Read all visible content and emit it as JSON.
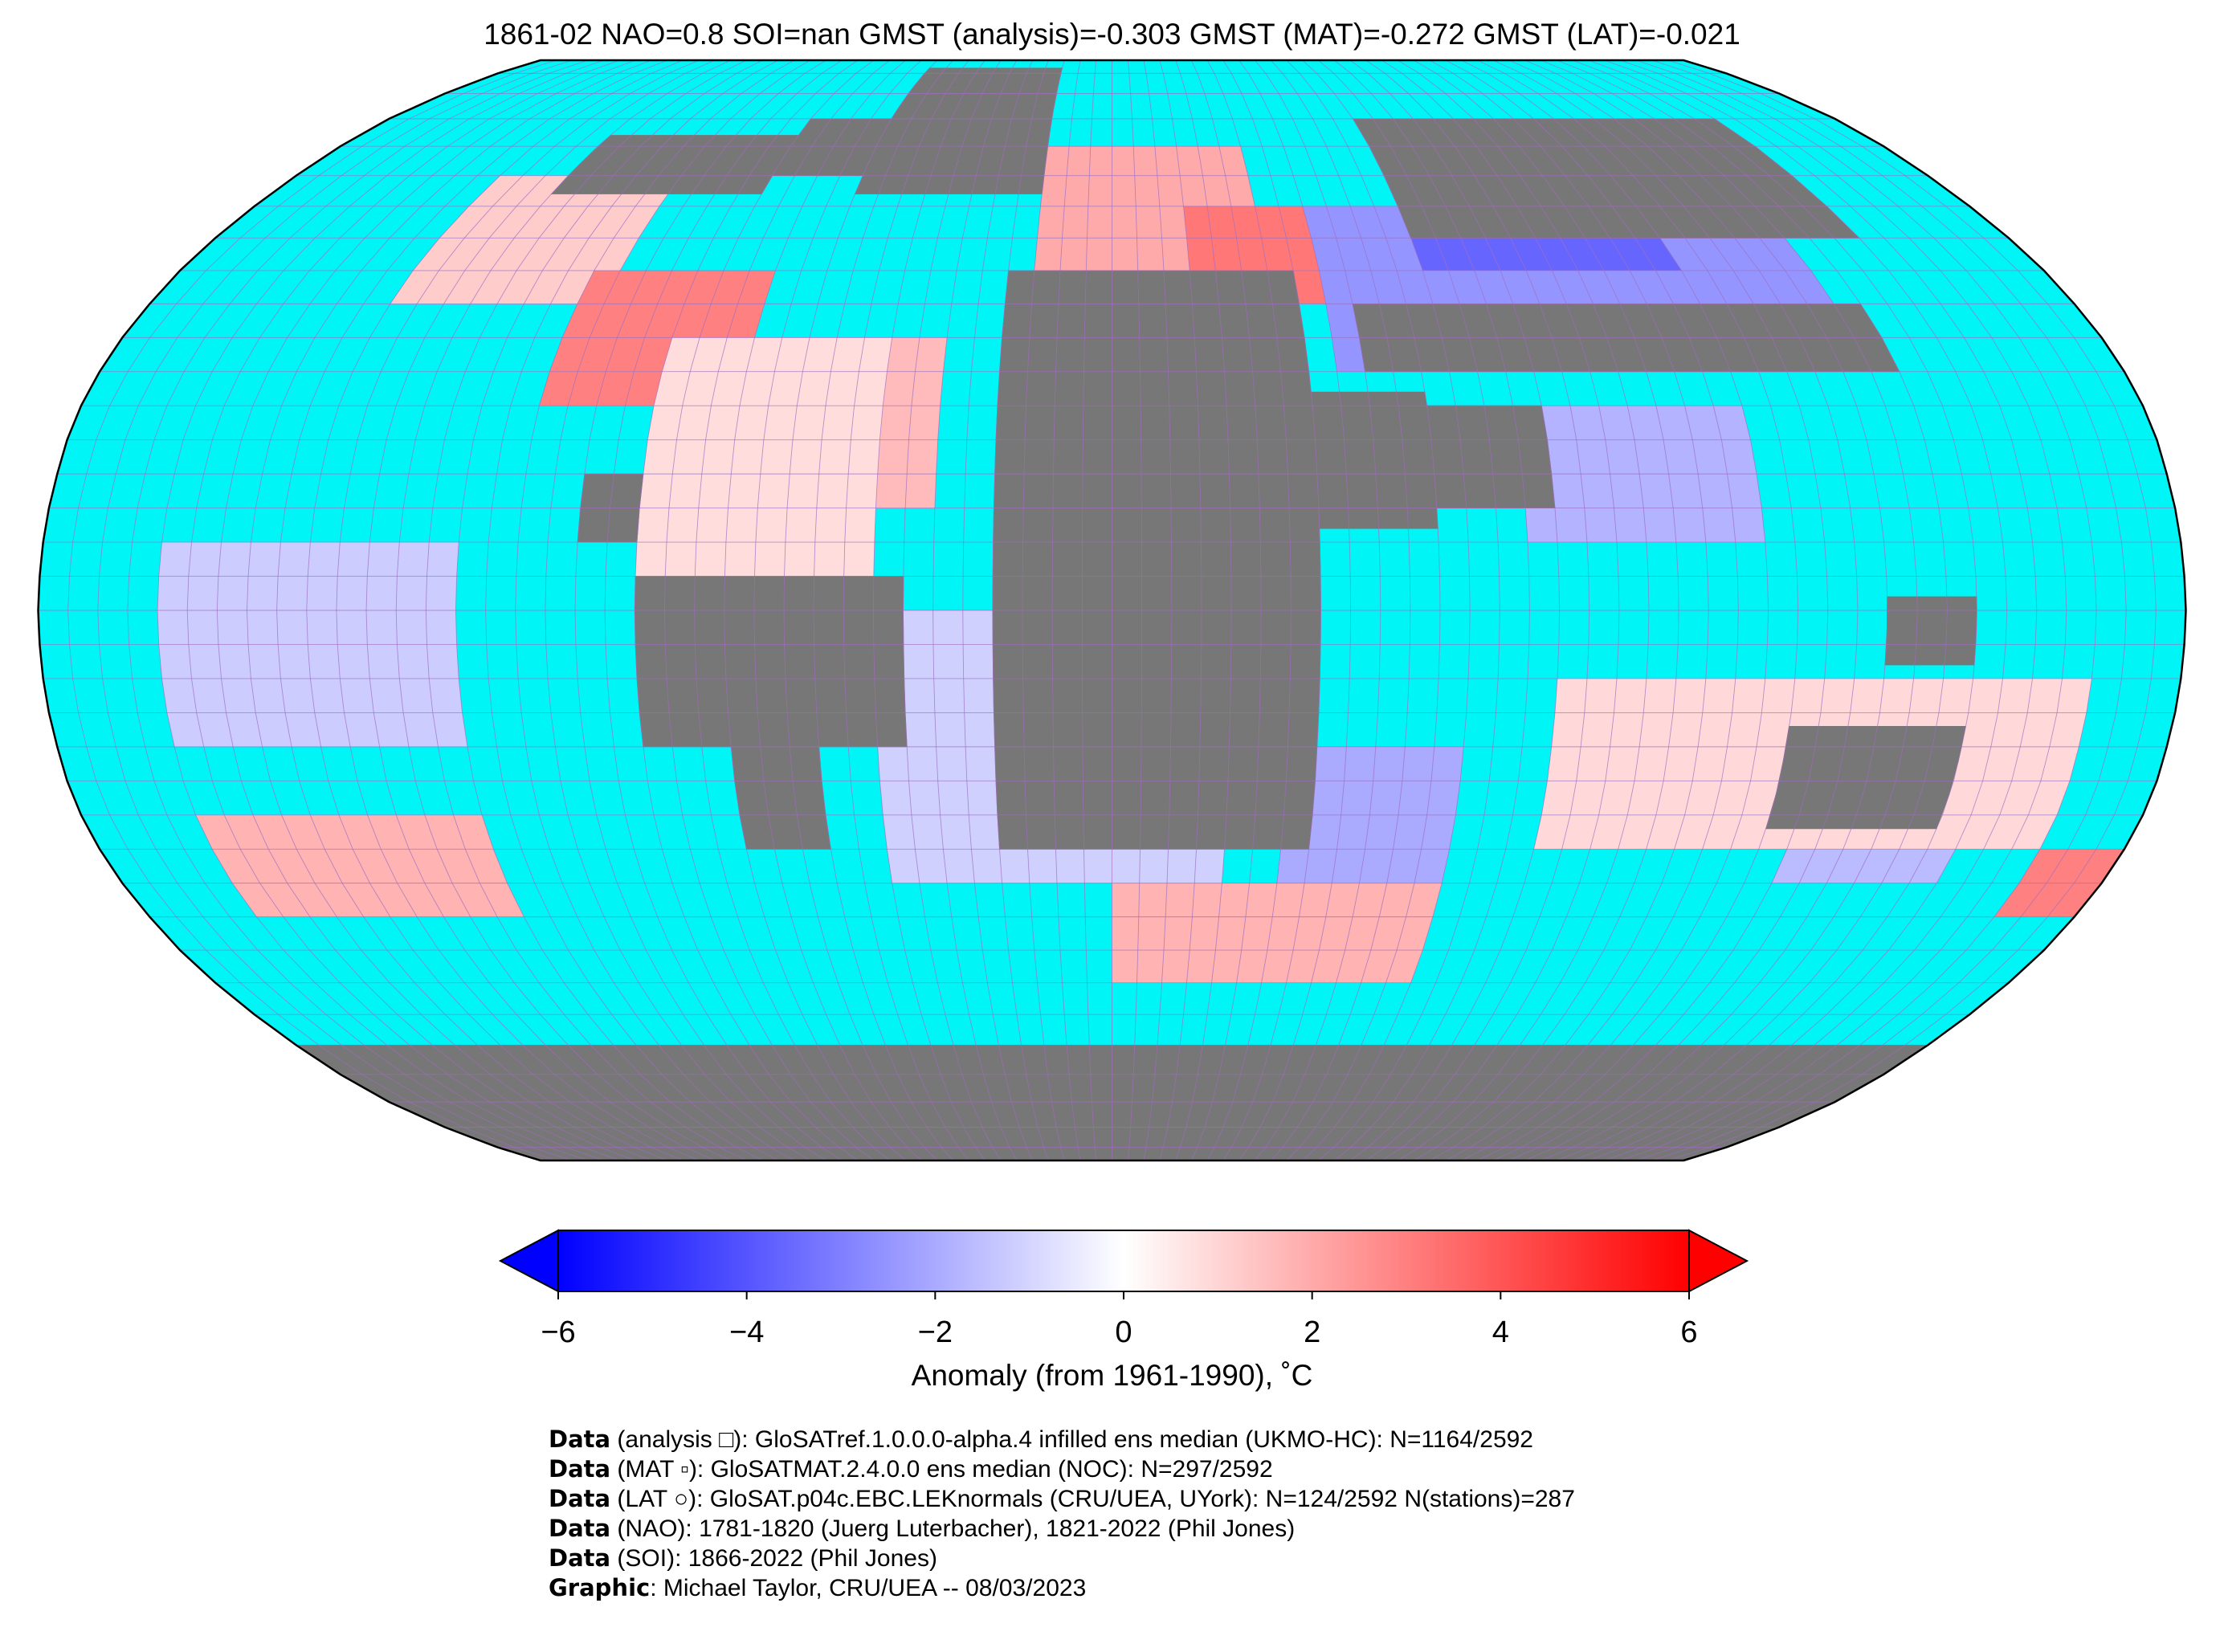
{
  "title": "1861-02 NAO=0.8 SOI=nan GMST (analysis)=-0.303 GMST (MAT)=-0.272 GMST (LAT)=-0.021",
  "colors": {
    "ocean_nodata": "#00f5f7",
    "land_nodata": "#777777",
    "grid_line": "#a36bc0",
    "cold": "#0000ff",
    "neutral": "#ffffff",
    "warm": "#ff0000"
  },
  "chart_data": {
    "type": "heatmap",
    "projection": "Robinson",
    "grid": "5-degree lat/lon boxes",
    "colorbar": {
      "vmin": -6,
      "vmax": 6,
      "ticks": [
        -6,
        -4,
        -2,
        0,
        2,
        4,
        6
      ],
      "tick_labels": [
        "−6",
        "−4",
        "−2",
        "0",
        "2",
        "4",
        "6"
      ],
      "label": "Anomaly (from 1961-1990), ˚C",
      "extend": "both",
      "cmap": "bwr"
    },
    "anomaly_regions": [
      {
        "lon": [
          -135,
          -95
        ],
        "lat": [
          45,
          65
        ],
        "anomaly": 1.2
      },
      {
        "lon": [
          -100,
          -65
        ],
        "lat": [
          30,
          50
        ],
        "anomaly": 3.0
      },
      {
        "lon": [
          -65,
          -30
        ],
        "lat": [
          15,
          40
        ],
        "anomaly": 1.6
      },
      {
        "lon": [
          -15,
          30
        ],
        "lat": [
          45,
          70
        ],
        "anomaly": 2.0
      },
      {
        "lon": [
          15,
          40
        ],
        "lat": [
          45,
          60
        ],
        "anomaly": 3.2
      },
      {
        "lon": [
          40,
          135
        ],
        "lat": [
          35,
          60
        ],
        "anomaly": -2.5
      },
      {
        "lon": [
          60,
          110
        ],
        "lat": [
          50,
          60
        ],
        "anomaly": -3.6
      },
      {
        "lon": [
          70,
          110
        ],
        "lat": [
          10,
          30
        ],
        "anomaly": -1.8
      },
      {
        "lon": [
          -80,
          -40
        ],
        "lat": [
          -20,
          40
        ],
        "anomaly": 0.8
      },
      {
        "lon": [
          -160,
          -110
        ],
        "lat": [
          -20,
          10
        ],
        "anomaly": -1.2
      },
      {
        "lon": [
          -160,
          -110
        ],
        "lat": [
          -45,
          -30
        ],
        "anomaly": 1.8
      },
      {
        "lon": [
          -40,
          20
        ],
        "lat": [
          -40,
          0
        ],
        "anomaly": -1.1
      },
      {
        "lon": [
          30,
          60
        ],
        "lat": [
          -40,
          -20
        ],
        "anomaly": -2.0
      },
      {
        "lon": [
          0,
          60
        ],
        "lat": [
          -55,
          -40
        ],
        "anomaly": 1.8
      },
      {
        "lon": [
          120,
          150
        ],
        "lat": [
          -40,
          -15
        ],
        "anomaly": -1.6
      },
      {
        "lon": [
          165,
          180
        ],
        "lat": [
          -45,
          -35
        ],
        "anomaly": 3.0
      },
      {
        "lon": [
          75,
          165
        ],
        "lat": [
          -35,
          -10
        ],
        "anomaly": 0.9
      }
    ]
  },
  "credits": [
    {
      "key": "Data",
      "text": "(analysis □): GloSATref.1.0.0.0-alpha.4 infilled ens median (UKMO-HC): N=1164/2592"
    },
    {
      "key": "Data",
      "text": "(MAT ▫): GloSATMAT.2.4.0.0 ens median (NOC): N=297/2592"
    },
    {
      "key": "Data",
      "text": "(LAT ○): GloSAT.p04c.EBC.LEKnormals (CRU/UEA, UYork): N=124/2592 N(stations)=287"
    },
    {
      "key": "Data",
      "text": "(NAO): 1781-1820 (Juerg Luterbacher), 1821-2022 (Phil Jones)"
    },
    {
      "key": "Data",
      "text": "(SOI): 1866-2022 (Phil Jones)"
    },
    {
      "key": "Graphic",
      "text": ": Michael Taylor, CRU/UEA -- 08/03/2023"
    }
  ]
}
